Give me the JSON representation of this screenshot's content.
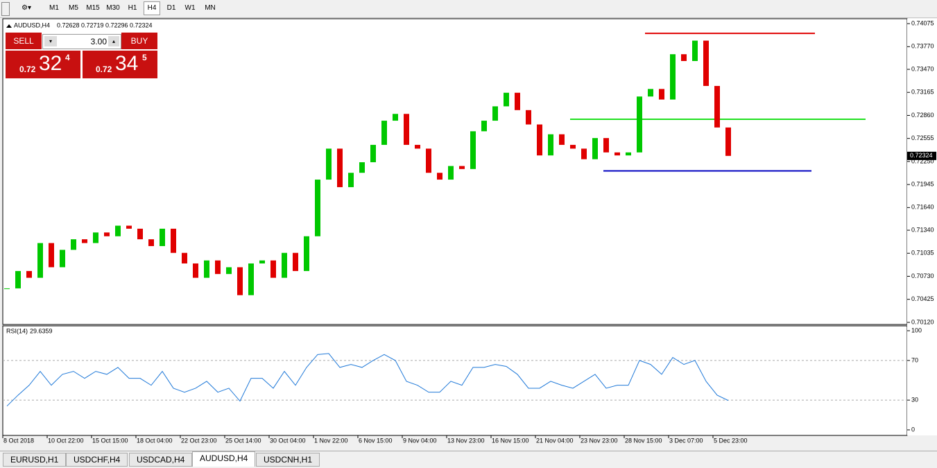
{
  "toolbar": {
    "timeframes": [
      "M1",
      "M5",
      "M15",
      "M30",
      "H1",
      "H4",
      "D1",
      "W1",
      "MN"
    ]
  },
  "trade_panel": {
    "sell": "SELL",
    "buy": "BUY",
    "lot": "3.00",
    "bid": {
      "big": "0.72",
      "mid": "32",
      "small": "4"
    },
    "ask": {
      "big": "0.72",
      "mid": "34",
      "small": "5"
    }
  },
  "tabs": [
    "EURUSD,H1",
    "USDCHF,H4",
    "USDCAD,H4",
    "AUDUSD,H4",
    "USDCNH,H1"
  ],
  "chart_data": [
    {
      "type": "candlestick",
      "title": "AUDUSD,H4",
      "quote": [
        0.72628,
        0.72719,
        0.72296,
        0.72324
      ],
      "last_price": 0.72324,
      "categories": [
        "8 Oct 2018",
        null,
        null,
        null,
        "10 Oct 22:00",
        null,
        null,
        null,
        "15 Oct 15:00",
        null,
        null,
        null,
        "18 Oct 04:00",
        null,
        null,
        null,
        "22 Oct 23:00",
        null,
        null,
        null,
        "25 Oct 14:00",
        null,
        null,
        null,
        "30 Oct 04:00",
        null,
        null,
        null,
        "1 Nov 22:00",
        null,
        null,
        null,
        "6 Nov 15:00",
        null,
        null,
        null,
        "9 Nov 04:00",
        null,
        null,
        null,
        "13 Nov 23:00",
        null,
        null,
        null,
        "16 Nov 15:00",
        null,
        null,
        null,
        "21 Nov 04:00",
        null,
        null,
        null,
        "23 Nov 23:00",
        null,
        null,
        null,
        "28 Nov 15:00",
        null,
        null,
        null,
        "3 Dec 07:00",
        null,
        null,
        null,
        "5 Dec 23:00",
        null
      ],
      "values": [
        0.7057,
        0.708,
        0.7071,
        0.7117,
        0.7085,
        0.7108,
        0.7122,
        0.7117,
        0.7131,
        0.7126,
        0.714,
        0.7136,
        0.7122,
        0.7113,
        0.7136,
        0.7104,
        0.709,
        0.7071,
        0.7094,
        0.7076,
        0.7085,
        0.7048,
        0.709,
        0.7094,
        0.7071,
        0.7104,
        0.708,
        0.7126,
        0.7201,
        0.7242,
        0.7191,
        0.721,
        0.7224,
        0.7247,
        0.7279,
        0.7288,
        0.7247,
        0.7242,
        0.721,
        0.7201,
        0.7219,
        0.7215,
        0.7265,
        0.7279,
        0.7298,
        0.7316,
        0.7293,
        0.7274,
        0.7233,
        0.7261,
        0.7247,
        0.7242,
        0.7228,
        0.7256,
        0.7237,
        0.7233,
        0.7237,
        0.7311,
        0.7321,
        0.7307,
        0.7367,
        0.7358,
        0.7385,
        0.7325,
        0.727,
        0.72324
      ],
      "up_color": "#00c800",
      "down_color": "#e00000",
      "levels": [
        {
          "value": 0.73946,
          "color": "#e00000"
        },
        {
          "value": 0.72809,
          "color": "#20e020"
        },
        {
          "value": 0.72125,
          "color": "#0000c0"
        }
      ],
      "ylim": [
        0.70092,
        0.7414
      ],
      "yticks": [
        0.74075,
        {
          "value": 0.7377,
          "label": "0.73770"
        },
        {
          "value": 0.7347,
          "label": "0.73470"
        },
        0.73165,
        {
          "value": 0.7286,
          "label": "0.72860"
        },
        0.72555,
        {
          "value": 0.7225,
          "label": "0.72250"
        },
        0.71945,
        {
          "value": 0.7164,
          "label": "0.71640"
        },
        {
          "value": 0.7134,
          "label": "0.71340"
        },
        0.71035,
        {
          "value": 0.7073,
          "label": "0.70730"
        },
        0.70425,
        {
          "value": 0.7012,
          "label": "0.70120"
        }
      ]
    },
    {
      "type": "line",
      "title": "RSI(14)",
      "color": "#1e78d8",
      "values": [
        24,
        35,
        45,
        59,
        45,
        56,
        59,
        52,
        59,
        56,
        63,
        52,
        52,
        45,
        59,
        42,
        38,
        42,
        49,
        38,
        42,
        29,
        52,
        52,
        42,
        59,
        45,
        63,
        76,
        77,
        63,
        66,
        63,
        70,
        76,
        70,
        49,
        45,
        38,
        38,
        49,
        45,
        63,
        63,
        66,
        64,
        56,
        42,
        42,
        49,
        45,
        42,
        49,
        56,
        42,
        45,
        45,
        70,
        66,
        56,
        73,
        66,
        70,
        49,
        35,
        29.6359
      ],
      "ylim": [
        0,
        100
      ],
      "yticks": [
        0,
        30,
        70,
        100
      ],
      "levels": [
        30,
        70
      ]
    }
  ]
}
